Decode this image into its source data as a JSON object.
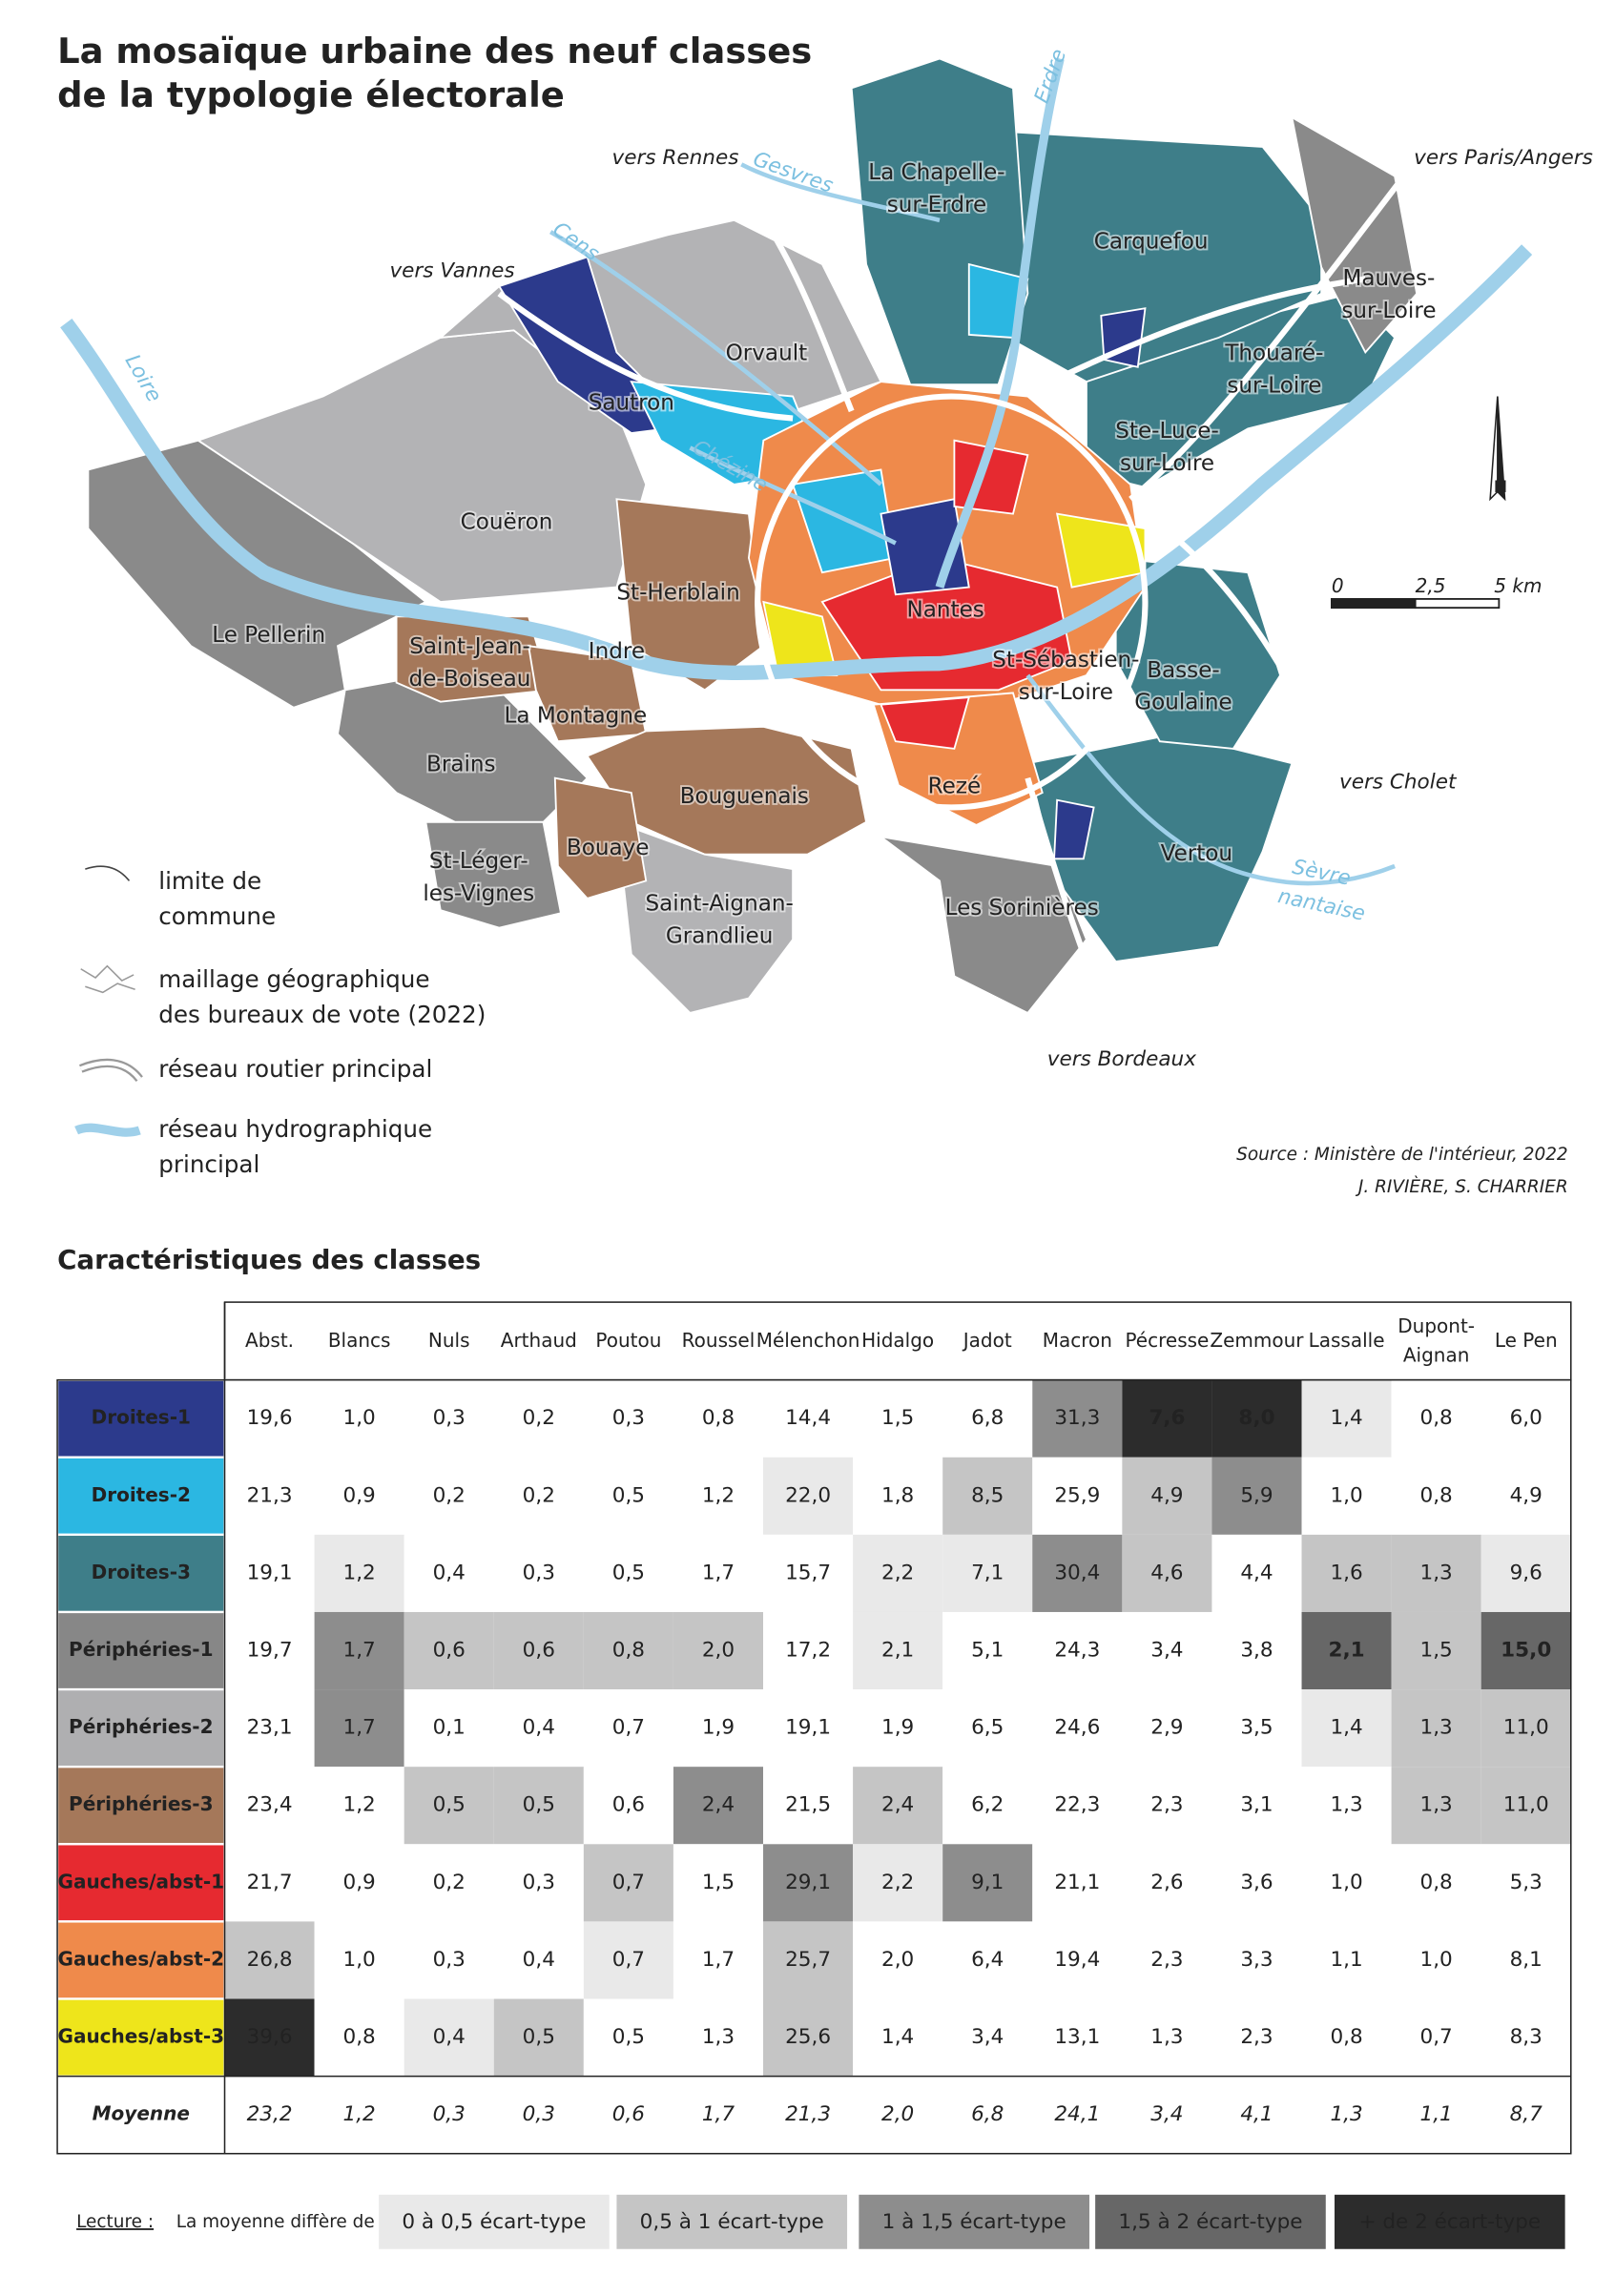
{
  "title": [
    "La mosaïque urbaine des neuf classes",
    "de la typologie électorale"
  ],
  "map": {
    "places": [
      [
        "La Chapelle-",
        "sur-Erdre"
      ],
      [
        "Carquefou"
      ],
      [
        "Mauves-",
        "sur-Loire"
      ],
      [
        "Thouaré-",
        "sur-Loire"
      ],
      [
        "Orvault"
      ],
      [
        "Sautron"
      ],
      [
        "Ste-Luce-",
        "sur-Loire"
      ],
      [
        "Couëron"
      ],
      [
        "St-Herblain"
      ],
      [
        "Nantes"
      ],
      [
        "Le Pellerin"
      ],
      [
        "Saint-Jean-",
        "de-Boiseau"
      ],
      [
        "Indre"
      ],
      [
        "St-Sébastien-",
        "sur-Loire"
      ],
      [
        "Basse-",
        "Goulaine"
      ],
      [
        "La Montagne"
      ],
      [
        "Brains"
      ],
      [
        "Bouguenais"
      ],
      [
        "Rezé"
      ],
      [
        "Vertou"
      ],
      [
        "Bouaye"
      ],
      [
        "St-Léger-",
        "les-Vignes"
      ],
      [
        "Saint-Aignan-",
        "Grandlieu"
      ],
      [
        "Les Sorinières"
      ]
    ],
    "directions": [
      "vers Rennes",
      "vers Vannes",
      "vers Paris/Angers",
      "vers Cholet",
      "vers Bordeaux"
    ],
    "rivers": [
      [
        "Erdre"
      ],
      [
        "Gesvres"
      ],
      [
        "Cens"
      ],
      [
        "Loire"
      ],
      [
        "Chézine"
      ],
      [
        "Sèvre",
        "nantaise"
      ]
    ],
    "north": "N",
    "scale": [
      "0",
      "2,5",
      "5 km"
    ],
    "legend": [
      [
        "limite de",
        "commune"
      ],
      [
        "maillage géographique",
        "des bureaux de vote (2022)"
      ],
      [
        "réseau routier principal"
      ],
      [
        "réseau hydrographique",
        "principal"
      ]
    ],
    "source": "Source : Ministère de l'intérieur, 2022",
    "authors": "J. RIVIÈRE, S. CHARRIER"
  },
  "table": {
    "title": "Caractéristiques des classes",
    "columns": [
      [
        "Abst."
      ],
      [
        "Blancs"
      ],
      [
        "Nuls"
      ],
      [
        "Arthaud"
      ],
      [
        "Poutou"
      ],
      [
        "Roussel"
      ],
      [
        "Mélenchon"
      ],
      [
        "Hidalgo"
      ],
      [
        "Jadot"
      ],
      [
        "Macron"
      ],
      [
        "Pécresse"
      ],
      [
        "Zemmour"
      ],
      [
        "Lassalle"
      ],
      [
        "Dupont-",
        "Aignan"
      ],
      [
        "Le Pen"
      ]
    ],
    "rows": [
      {
        "name": "Droites-1",
        "color": "#2c3a8c",
        "values": [
          "19,6",
          "1,0",
          "0,3",
          "0,2",
          "0,3",
          "0,8",
          "14,4",
          "1,5",
          "6,8",
          "31,3",
          "7,6",
          "8,0",
          "1,4",
          "0,8",
          "6,0"
        ],
        "shades": [
          0,
          0,
          0,
          0,
          0,
          0,
          0,
          0,
          0,
          3,
          5,
          5,
          1,
          0,
          0
        ]
      },
      {
        "name": "Droites-2",
        "color": "#2bb7e2",
        "values": [
          "21,3",
          "0,9",
          "0,2",
          "0,2",
          "0,5",
          "1,2",
          "22,0",
          "1,8",
          "8,5",
          "25,9",
          "4,9",
          "5,9",
          "1,0",
          "0,8",
          "4,9"
        ],
        "shades": [
          0,
          0,
          0,
          0,
          0,
          0,
          1,
          0,
          2,
          0,
          2,
          3,
          0,
          0,
          0
        ]
      },
      {
        "name": "Droites-3",
        "color": "#3e7e89",
        "values": [
          "19,1",
          "1,2",
          "0,4",
          "0,3",
          "0,5",
          "1,7",
          "15,7",
          "2,2",
          "7,1",
          "30,4",
          "4,6",
          "4,4",
          "1,6",
          "1,3",
          "9,6"
        ],
        "shades": [
          0,
          1,
          0,
          0,
          0,
          0,
          0,
          1,
          1,
          3,
          2,
          0,
          2,
          2,
          1
        ]
      },
      {
        "name": "Périphéries-1",
        "color": "#878787",
        "values": [
          "19,7",
          "1,7",
          "0,6",
          "0,6",
          "0,8",
          "2,0",
          "17,2",
          "2,1",
          "5,1",
          "24,3",
          "3,4",
          "3,8",
          "2,1",
          "1,5",
          "15,0"
        ],
        "shades": [
          0,
          3,
          2,
          2,
          2,
          2,
          0,
          1,
          0,
          0,
          0,
          0,
          4,
          2,
          4
        ]
      },
      {
        "name": "Périphéries-2",
        "color": "#afafb1",
        "values": [
          "23,1",
          "1,7",
          "0,1",
          "0,4",
          "0,7",
          "1,9",
          "19,1",
          "1,9",
          "6,5",
          "24,6",
          "2,9",
          "3,5",
          "1,4",
          "1,3",
          "11,0"
        ],
        "shades": [
          0,
          3,
          0,
          0,
          0,
          0,
          0,
          0,
          0,
          0,
          0,
          0,
          1,
          2,
          2
        ]
      },
      {
        "name": "Périphéries-3",
        "color": "#a5785a",
        "values": [
          "23,4",
          "1,2",
          "0,5",
          "0,5",
          "0,6",
          "2,4",
          "21,5",
          "2,4",
          "6,2",
          "22,3",
          "2,3",
          "3,1",
          "1,3",
          "1,3",
          "11,0"
        ],
        "shades": [
          0,
          0,
          2,
          2,
          0,
          3,
          0,
          2,
          0,
          0,
          0,
          0,
          0,
          2,
          2
        ]
      },
      {
        "name": "Gauches/abst-1",
        "color": "#e62a30",
        "values": [
          "21,7",
          "0,9",
          "0,2",
          "0,3",
          "0,7",
          "1,5",
          "29,1",
          "2,2",
          "9,1",
          "21,1",
          "2,6",
          "3,6",
          "1,0",
          "0,8",
          "5,3"
        ],
        "shades": [
          0,
          0,
          0,
          0,
          2,
          0,
          3,
          1,
          3,
          0,
          0,
          0,
          0,
          0,
          0
        ]
      },
      {
        "name": "Gauches/abst-2",
        "color": "#ef8a4b",
        "values": [
          "26,8",
          "1,0",
          "0,3",
          "0,4",
          "0,7",
          "1,7",
          "25,7",
          "2,0",
          "6,4",
          "19,4",
          "2,3",
          "3,3",
          "1,1",
          "1,0",
          "8,1"
        ],
        "shades": [
          2,
          0,
          0,
          0,
          1,
          0,
          2,
          0,
          0,
          0,
          0,
          0,
          0,
          0,
          0
        ]
      },
      {
        "name": "Gauches/abst-3",
        "color": "#eee51b",
        "text_color": "#222222",
        "values": [
          "39,6",
          "0,8",
          "0,4",
          "0,5",
          "0,5",
          "1,3",
          "25,6",
          "1,4",
          "3,4",
          "13,1",
          "1,3",
          "2,3",
          "0,8",
          "0,7",
          "8,3"
        ],
        "shades": [
          5,
          0,
          1,
          2,
          0,
          0,
          2,
          0,
          0,
          0,
          0,
          0,
          0,
          0,
          0
        ]
      }
    ],
    "average": {
      "name": "Moyenne",
      "values": [
        "23,2",
        "1,2",
        "0,3",
        "0,3",
        "0,6",
        "1,7",
        "21,3",
        "2,0",
        "6,8",
        "24,1",
        "3,4",
        "4,1",
        "1,3",
        "1,1",
        "8,7"
      ]
    },
    "reading": {
      "prefix": "Lecture :",
      "text": "La moyenne diffère de ...",
      "levels": [
        {
          "label": "0 à 0,5 écart-type",
          "color": "#e9e9e9"
        },
        {
          "label": "0,5 à 1 écart-type",
          "color": "#c5c5c5"
        },
        {
          "label": "1 à 1,5 écart-type",
          "color": "#8d8d8d"
        },
        {
          "label": "1,5 à 2 écart-type",
          "color": "#676767"
        },
        {
          "label": "+ de 2 écart-type",
          "color": "#2c2c2c"
        }
      ]
    }
  }
}
